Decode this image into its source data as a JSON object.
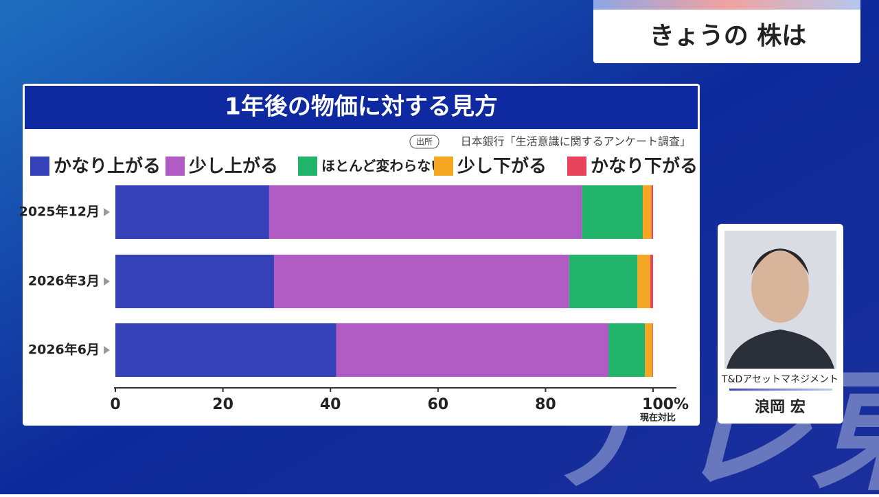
{
  "header": {
    "title": "きょうの 株は"
  },
  "chart_data": {
    "type": "bar",
    "orientation": "horizontal",
    "stacked": true,
    "title": "1年後の物価に対する見方",
    "source_tag": "出所",
    "source": "日本銀行「生活意識に関するアンケート調査」",
    "categories": [
      "2025年12月",
      "2026年3月",
      "2026年6月"
    ],
    "series": [
      {
        "name": "かなり上がる",
        "color": "#3541b6",
        "values": [
          28.6,
          29.5,
          41.1
        ]
      },
      {
        "name": "少し上がる",
        "color": "#b05cc4",
        "values": [
          58.2,
          54.9,
          50.6
        ]
      },
      {
        "name": "ほとんど変わらない",
        "color": "#22b46a",
        "values": [
          11.3,
          12.7,
          6.8
        ]
      },
      {
        "name": "少し下がる",
        "color": "#f5a623",
        "values": [
          1.6,
          2.4,
          1.4
        ]
      },
      {
        "name": "かなり下がる",
        "color": "#e8435a",
        "values": [
          0.3,
          0.5,
          0.1
        ]
      }
    ],
    "xlim": [
      0,
      100
    ],
    "xticks": [
      0,
      20,
      40,
      60,
      80,
      {
        "value": 100,
        "label": "100%"
      }
    ],
    "x_note": "現在対比",
    "grid": false
  },
  "presenter": {
    "company": "T&Dアセットマネジメント",
    "name": "浪岡 宏"
  },
  "watermark": "テレ東"
}
